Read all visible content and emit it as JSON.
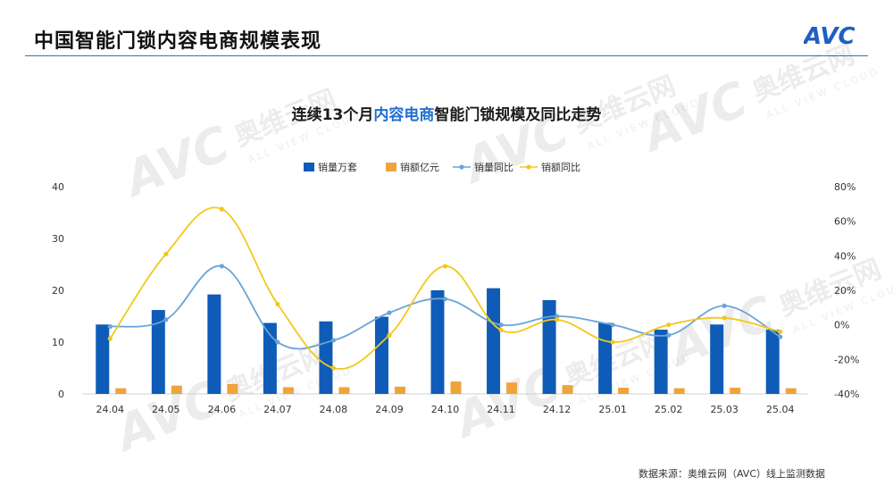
{
  "header": {
    "title": "中国智能门锁内容电商规模表现",
    "logo_text": "AVC"
  },
  "chart_title": {
    "prefix": "连续13个月",
    "highlight": "内容电商",
    "suffix": "智能门锁规模及同比走势"
  },
  "watermark": {
    "cn": "奥维云网",
    "en": "ALL VIEW CLOUD",
    "logo": "AVC"
  },
  "source_note": "数据来源：奥维云网（AVC）线上监测数据",
  "colors": {
    "volume": "#0f5cb8",
    "amount": "#f0a33a",
    "volume_yoy": "#6aa4d8",
    "amount_yoy": "#f3c81c",
    "accent": "#2f74c6"
  },
  "chart_data": {
    "type": "bar",
    "categories": [
      "24.04",
      "24.05",
      "24.06",
      "24.07",
      "24.08",
      "24.09",
      "24.10",
      "24.11",
      "24.12",
      "25.01",
      "25.02",
      "25.03",
      "25.04"
    ],
    "series": [
      {
        "name": "销量万套",
        "type": "bar",
        "axis": "left",
        "values": [
          13.4,
          16.2,
          19.2,
          13.7,
          14.0,
          14.9,
          20.0,
          20.4,
          18.1,
          13.7,
          12.4,
          13.4,
          12.4
        ]
      },
      {
        "name": "销额亿元",
        "type": "bar",
        "axis": "left",
        "values": [
          1.1,
          1.6,
          1.9,
          1.3,
          1.3,
          1.4,
          2.4,
          2.2,
          1.7,
          1.2,
          1.1,
          1.2,
          1.1
        ]
      },
      {
        "name": "销量同比",
        "type": "line",
        "axis": "right",
        "values": [
          -1,
          3,
          34,
          -10,
          -9,
          7,
          15,
          0,
          5,
          0,
          -6,
          11,
          -7
        ]
      },
      {
        "name": "销额同比",
        "type": "line",
        "axis": "right",
        "values": [
          -8,
          41,
          67,
          12,
          -25,
          -6,
          34,
          -3,
          3,
          -10,
          0,
          4,
          -4
        ]
      }
    ],
    "left_axis": {
      "ticks": [
        "0",
        "10",
        "20",
        "30",
        "40"
      ],
      "ylim": [
        0,
        40
      ]
    },
    "right_axis": {
      "ticks": [
        "-40%",
        "-20%",
        "0%",
        "20%",
        "40%",
        "60%",
        "80%"
      ],
      "ylim": [
        -40,
        80
      ]
    },
    "legend_position": "top-center",
    "grid": false
  }
}
